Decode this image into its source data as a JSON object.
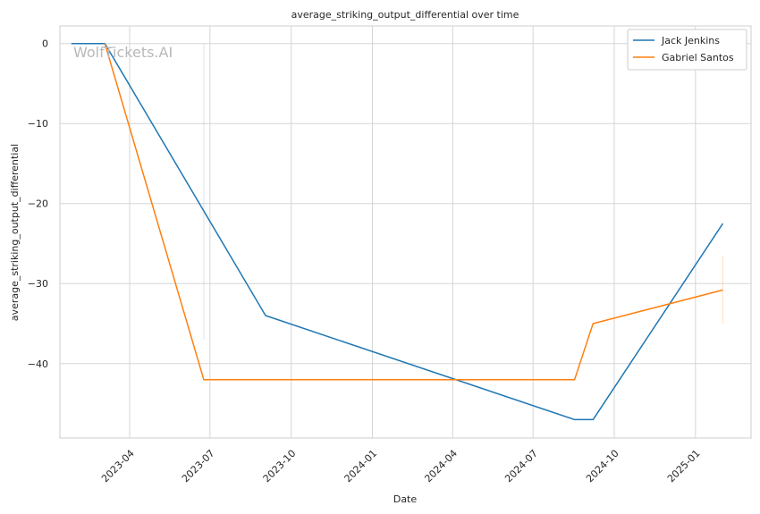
{
  "chart_data": {
    "type": "line",
    "title": "average_striking_output_differential over time",
    "xlabel": "Date",
    "ylabel": "average_striking_output_differential",
    "watermark": "WolfTickets.AI",
    "x_ticks": [
      "2023-04",
      "2023-07",
      "2023-10",
      "2024-01",
      "2024-04",
      "2024-07",
      "2024-10",
      "2025-01"
    ],
    "y_ticks": [
      0,
      -10,
      -20,
      -30,
      -40
    ],
    "xlim": [
      "2023-01-12",
      "2025-03-05"
    ],
    "ylim": [
      -49.3,
      2.2
    ],
    "grid": true,
    "legend_position": "top-right",
    "series": [
      {
        "name": "Jack Jenkins",
        "color": "#1f77b4",
        "points": [
          {
            "x": "2023-01-25",
            "y": 0
          },
          {
            "x": "2023-03-04",
            "y": 0
          },
          {
            "x": "2023-09-02",
            "y": -34
          },
          {
            "x": "2024-08-17",
            "y": -47
          },
          {
            "x": "2024-09-07",
            "y": -47
          },
          {
            "x": "2025-02-01",
            "y": -22.5
          }
        ]
      },
      {
        "name": "Gabriel Santos",
        "color": "#ff7f0e",
        "points": [
          {
            "x": "2023-03-04",
            "y": 0
          },
          {
            "x": "2023-06-24",
            "y": -42
          },
          {
            "x": "2024-08-17",
            "y": -42
          },
          {
            "x": "2024-09-07",
            "y": -35
          },
          {
            "x": "2025-02-01",
            "y": -30.8
          }
        ]
      }
    ]
  }
}
